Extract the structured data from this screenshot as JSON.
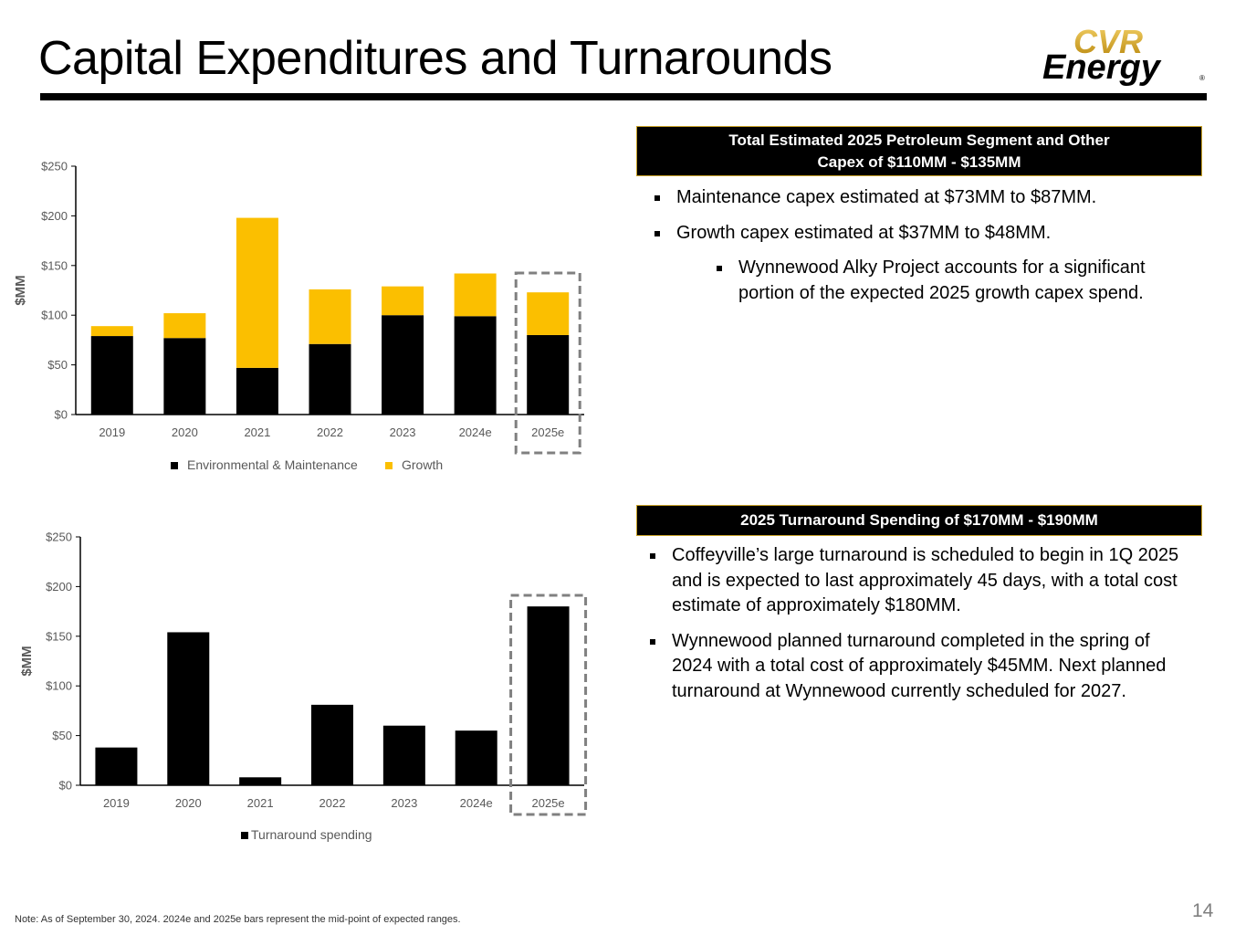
{
  "slide": {
    "title": "Capital Expenditures and Turnarounds",
    "page_number": "14",
    "note": "Note:  As of September 30, 2024. 2024e and 2025e bars represent the mid-point of expected ranges.",
    "logo": {
      "line1": "CVR",
      "line2": "Energy",
      "mark": "®"
    }
  },
  "colors": {
    "black": "#000000",
    "gold": "#fbbf00",
    "dash": "#808080",
    "accent": "#c9a227"
  },
  "capex_panel": {
    "header_line1": "Total Estimated 2025 Petroleum Segment and Other",
    "header_line2": "Capex of $110MM - $135MM",
    "bullets": [
      "Maintenance capex estimated at $73MM to $87MM.",
      "Growth capex estimated at $37MM to $48MM."
    ],
    "sub_bullet": "Wynnewood Alky Project accounts for a significant portion of the expected 2025 growth capex spend."
  },
  "turnaround_panel": {
    "header": "2025 Turnaround Spending of $170MM - $190MM",
    "bullets": [
      "Coffeyville’s large turnaround is scheduled to begin in 1Q 2025 and is expected to last approximately 45 days, with a total cost estimate of approximately $180MM.",
      "Wynnewood planned turnaround completed in the spring of 2024 with a total cost of approximately $45MM. Next planned turnaround at Wynnewood currently scheduled for 2027."
    ]
  },
  "chart_data": [
    {
      "type": "bar",
      "stacked": true,
      "ylabel": "$MM",
      "ylim": [
        0,
        250
      ],
      "yticks": [
        "$0",
        "$50",
        "$100",
        "$150",
        "$200",
        "$250"
      ],
      "categories": [
        "2019",
        "2020",
        "2021",
        "2022",
        "2023",
        "2024e",
        "2025e"
      ],
      "series": [
        {
          "name": "Environmental & Maintenance",
          "values": [
            79,
            77,
            47,
            71,
            100,
            99,
            80
          ]
        },
        {
          "name": "Growth",
          "values": [
            10,
            25,
            151,
            55,
            29,
            43,
            43
          ]
        }
      ],
      "legend": "bottom",
      "highlight": "2025e"
    },
    {
      "type": "bar",
      "ylabel": "$MM",
      "ylim": [
        0,
        250
      ],
      "yticks": [
        "$0",
        "$50",
        "$100",
        "$150",
        "$200",
        "$250"
      ],
      "categories": [
        "2019",
        "2020",
        "2021",
        "2022",
        "2023",
        "2024e",
        "2025e"
      ],
      "series": [
        {
          "name": "Turnaround spending",
          "values": [
            38,
            154,
            8,
            81,
            60,
            55,
            180
          ]
        }
      ],
      "legend": "bottom",
      "highlight": "2025e"
    }
  ]
}
